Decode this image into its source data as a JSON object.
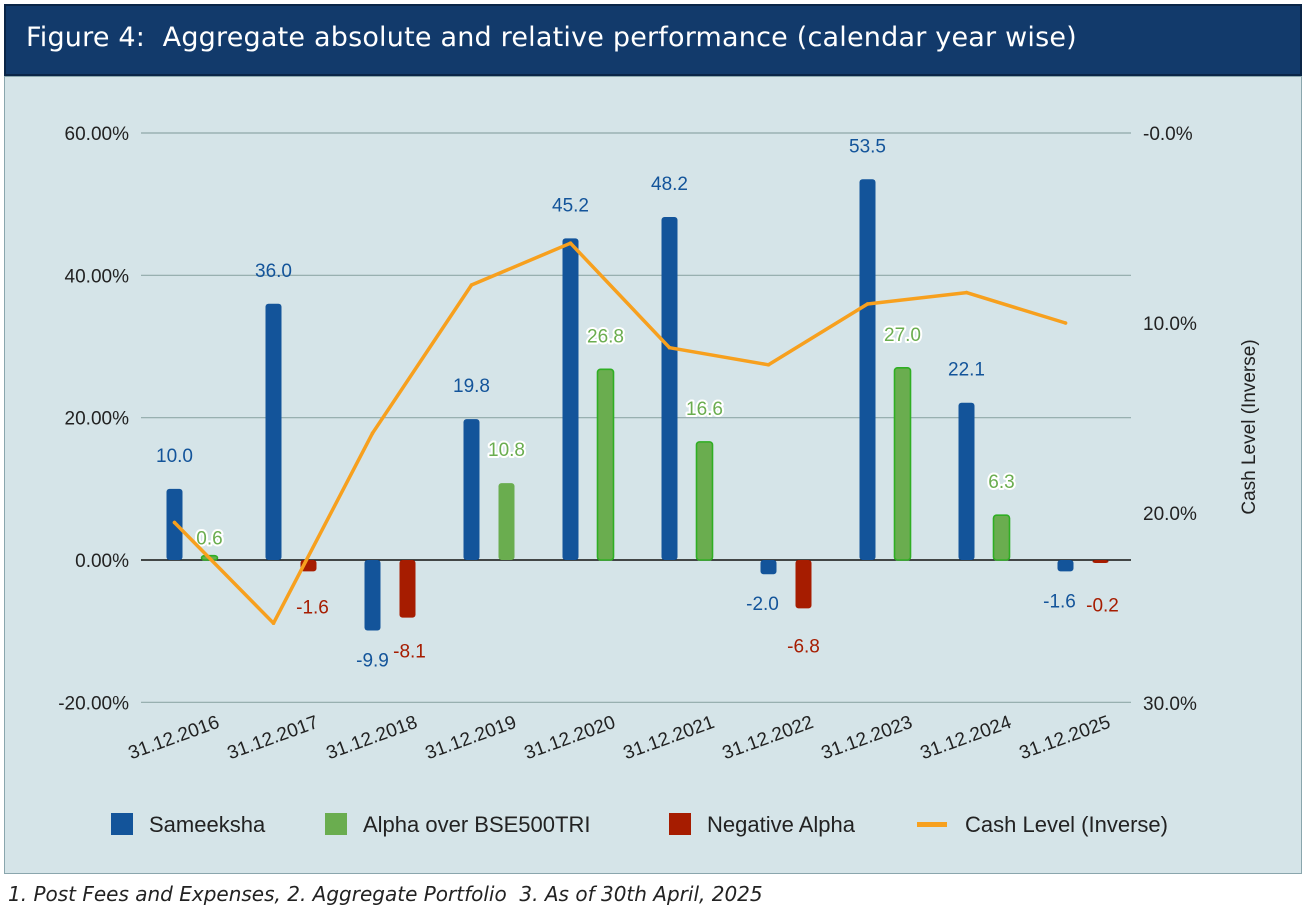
{
  "header": {
    "title": "Figure 4:  Aggregate absolute and relative performance (calendar year wise)"
  },
  "footnote": "1. Post Fees and Expenses, 2. Aggregate Portfolio  3. As of 30th April, 2025",
  "colors": {
    "sameeksha": "#13549a",
    "alpha": "#6aad4f",
    "alpha_border": "#2fae23",
    "negative_alpha": "#a61c00",
    "cash": "#f7a01e",
    "grid": "#8fa8a8",
    "background": "#d5e4e8"
  },
  "chart_data": {
    "type": "bar",
    "categories": [
      "31.12.2016",
      "31.12.2017",
      "31.12.2018",
      "31.12.2019",
      "31.12.2020",
      "31.12.2021",
      "31.12.2022",
      "31.12.2023",
      "31.12.2024",
      "31.12.2025"
    ],
    "series": [
      {
        "name": "Sameeksha",
        "type": "bar",
        "axis": "left",
        "values": [
          10.0,
          36.0,
          -9.9,
          19.8,
          45.2,
          48.2,
          -2.0,
          53.5,
          22.1,
          -1.6
        ],
        "labels": [
          "10.0",
          "36.0",
          "-9.9",
          "19.8",
          "45.2",
          "48.2",
          "-2.0",
          "53.5",
          "22.1",
          "-1.6"
        ]
      },
      {
        "name": "Alpha over BSE500TRI",
        "type": "bar",
        "axis": "left",
        "values": [
          0.6,
          null,
          null,
          10.8,
          26.8,
          16.6,
          null,
          27.0,
          6.3,
          null
        ],
        "labels": [
          "0.6",
          null,
          null,
          "10.8",
          "26.8",
          "16.6",
          null,
          "27.0",
          "6.3",
          null
        ]
      },
      {
        "name": "Negative Alpha",
        "type": "bar",
        "axis": "left",
        "values": [
          null,
          -1.6,
          -8.1,
          null,
          null,
          null,
          -6.8,
          null,
          null,
          -0.2
        ],
        "labels": [
          null,
          "-1.6",
          "-8.1",
          null,
          null,
          null,
          "-6.8",
          null,
          null,
          "-0.2"
        ]
      },
      {
        "name": "Cash Level (Inverse)",
        "type": "line",
        "axis": "right",
        "values": [
          20.5,
          25.8,
          15.8,
          8.0,
          5.8,
          11.3,
          12.2,
          9.0,
          8.4,
          10.0
        ]
      }
    ],
    "left_axis": {
      "ticks": [
        -20,
        0,
        20,
        40,
        60
      ],
      "tick_labels": [
        "-20.00%",
        "0.00%",
        "20.00%",
        "40.00%",
        "60.00%"
      ],
      "ylim": [
        -20,
        60
      ]
    },
    "right_axis": {
      "label": "Cash Level (Inverse)",
      "inverted": true,
      "ticks": [
        0,
        10,
        20,
        30
      ],
      "tick_labels": [
        "-0.0%",
        "10.0%",
        "20.0%",
        "30.0%"
      ],
      "ylim": [
        0,
        30
      ]
    },
    "grid": true,
    "legend": {
      "position": "bottom"
    }
  }
}
